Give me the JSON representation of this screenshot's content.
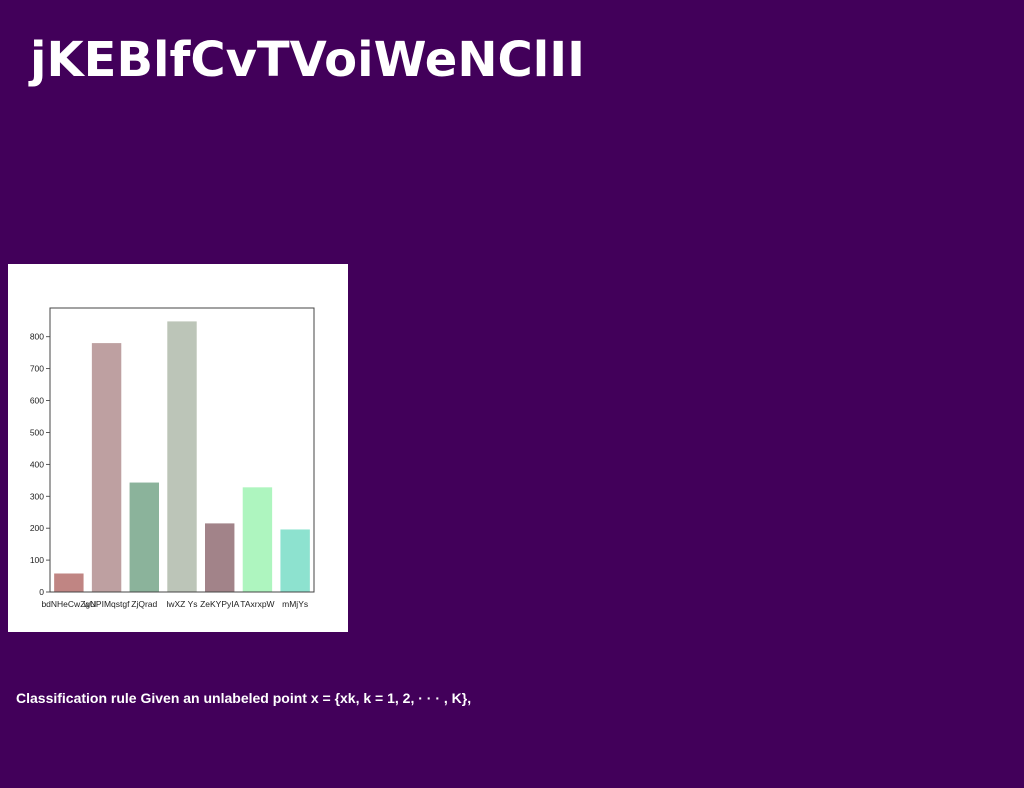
{
  "slide": {
    "title": "jKEBlfCvTVoiWeNClII",
    "caption": "Classification rule Given an unlabeled point x = {xk, k = 1, 2, · · · , K},",
    "background": "#42005a"
  },
  "chart_data": {
    "type": "bar",
    "categories": [
      "bdNHeCwZgN",
      "wUPIMqstgf",
      "ZjQrad",
      "lwXZ Ys",
      "ZeKYPyIA",
      "TAxrxpW",
      "mMjYs"
    ],
    "values": [
      58,
      780,
      343,
      848,
      215,
      328,
      196
    ],
    "colors": [
      "#c08583",
      "#bea0a1",
      "#8bb39b",
      "#bcc5b8",
      "#a28389",
      "#aef5bf",
      "#8de2cf"
    ],
    "ylim": [
      0,
      890
    ],
    "yticks": [
      0,
      100,
      200,
      300,
      400,
      500,
      600,
      700,
      800
    ],
    "title": "",
    "xlabel": "",
    "ylabel": "",
    "grid": false
  }
}
